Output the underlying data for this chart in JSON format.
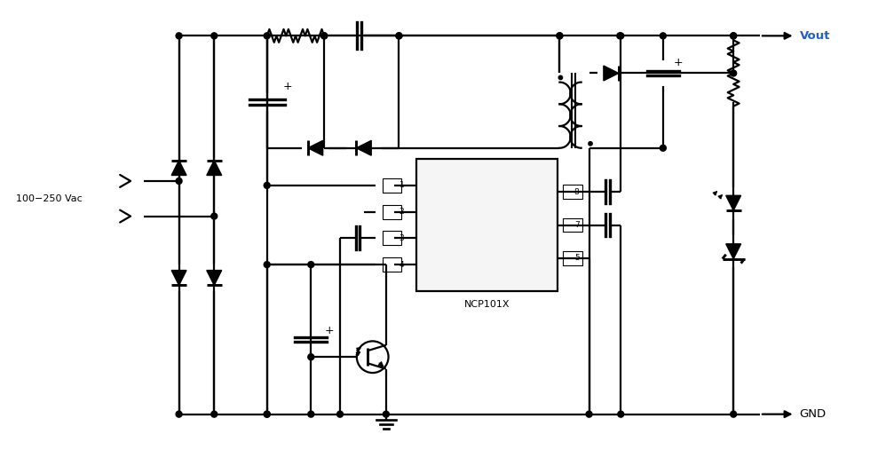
{
  "bg_color": "#ffffff",
  "lc": "#000000",
  "vout_color": "#2060c0",
  "lw": 1.6,
  "figsize": [
    9.98,
    5.07
  ],
  "dpi": 100,
  "ac_label": "100−250 Vac",
  "ic_label": "NCP101X"
}
